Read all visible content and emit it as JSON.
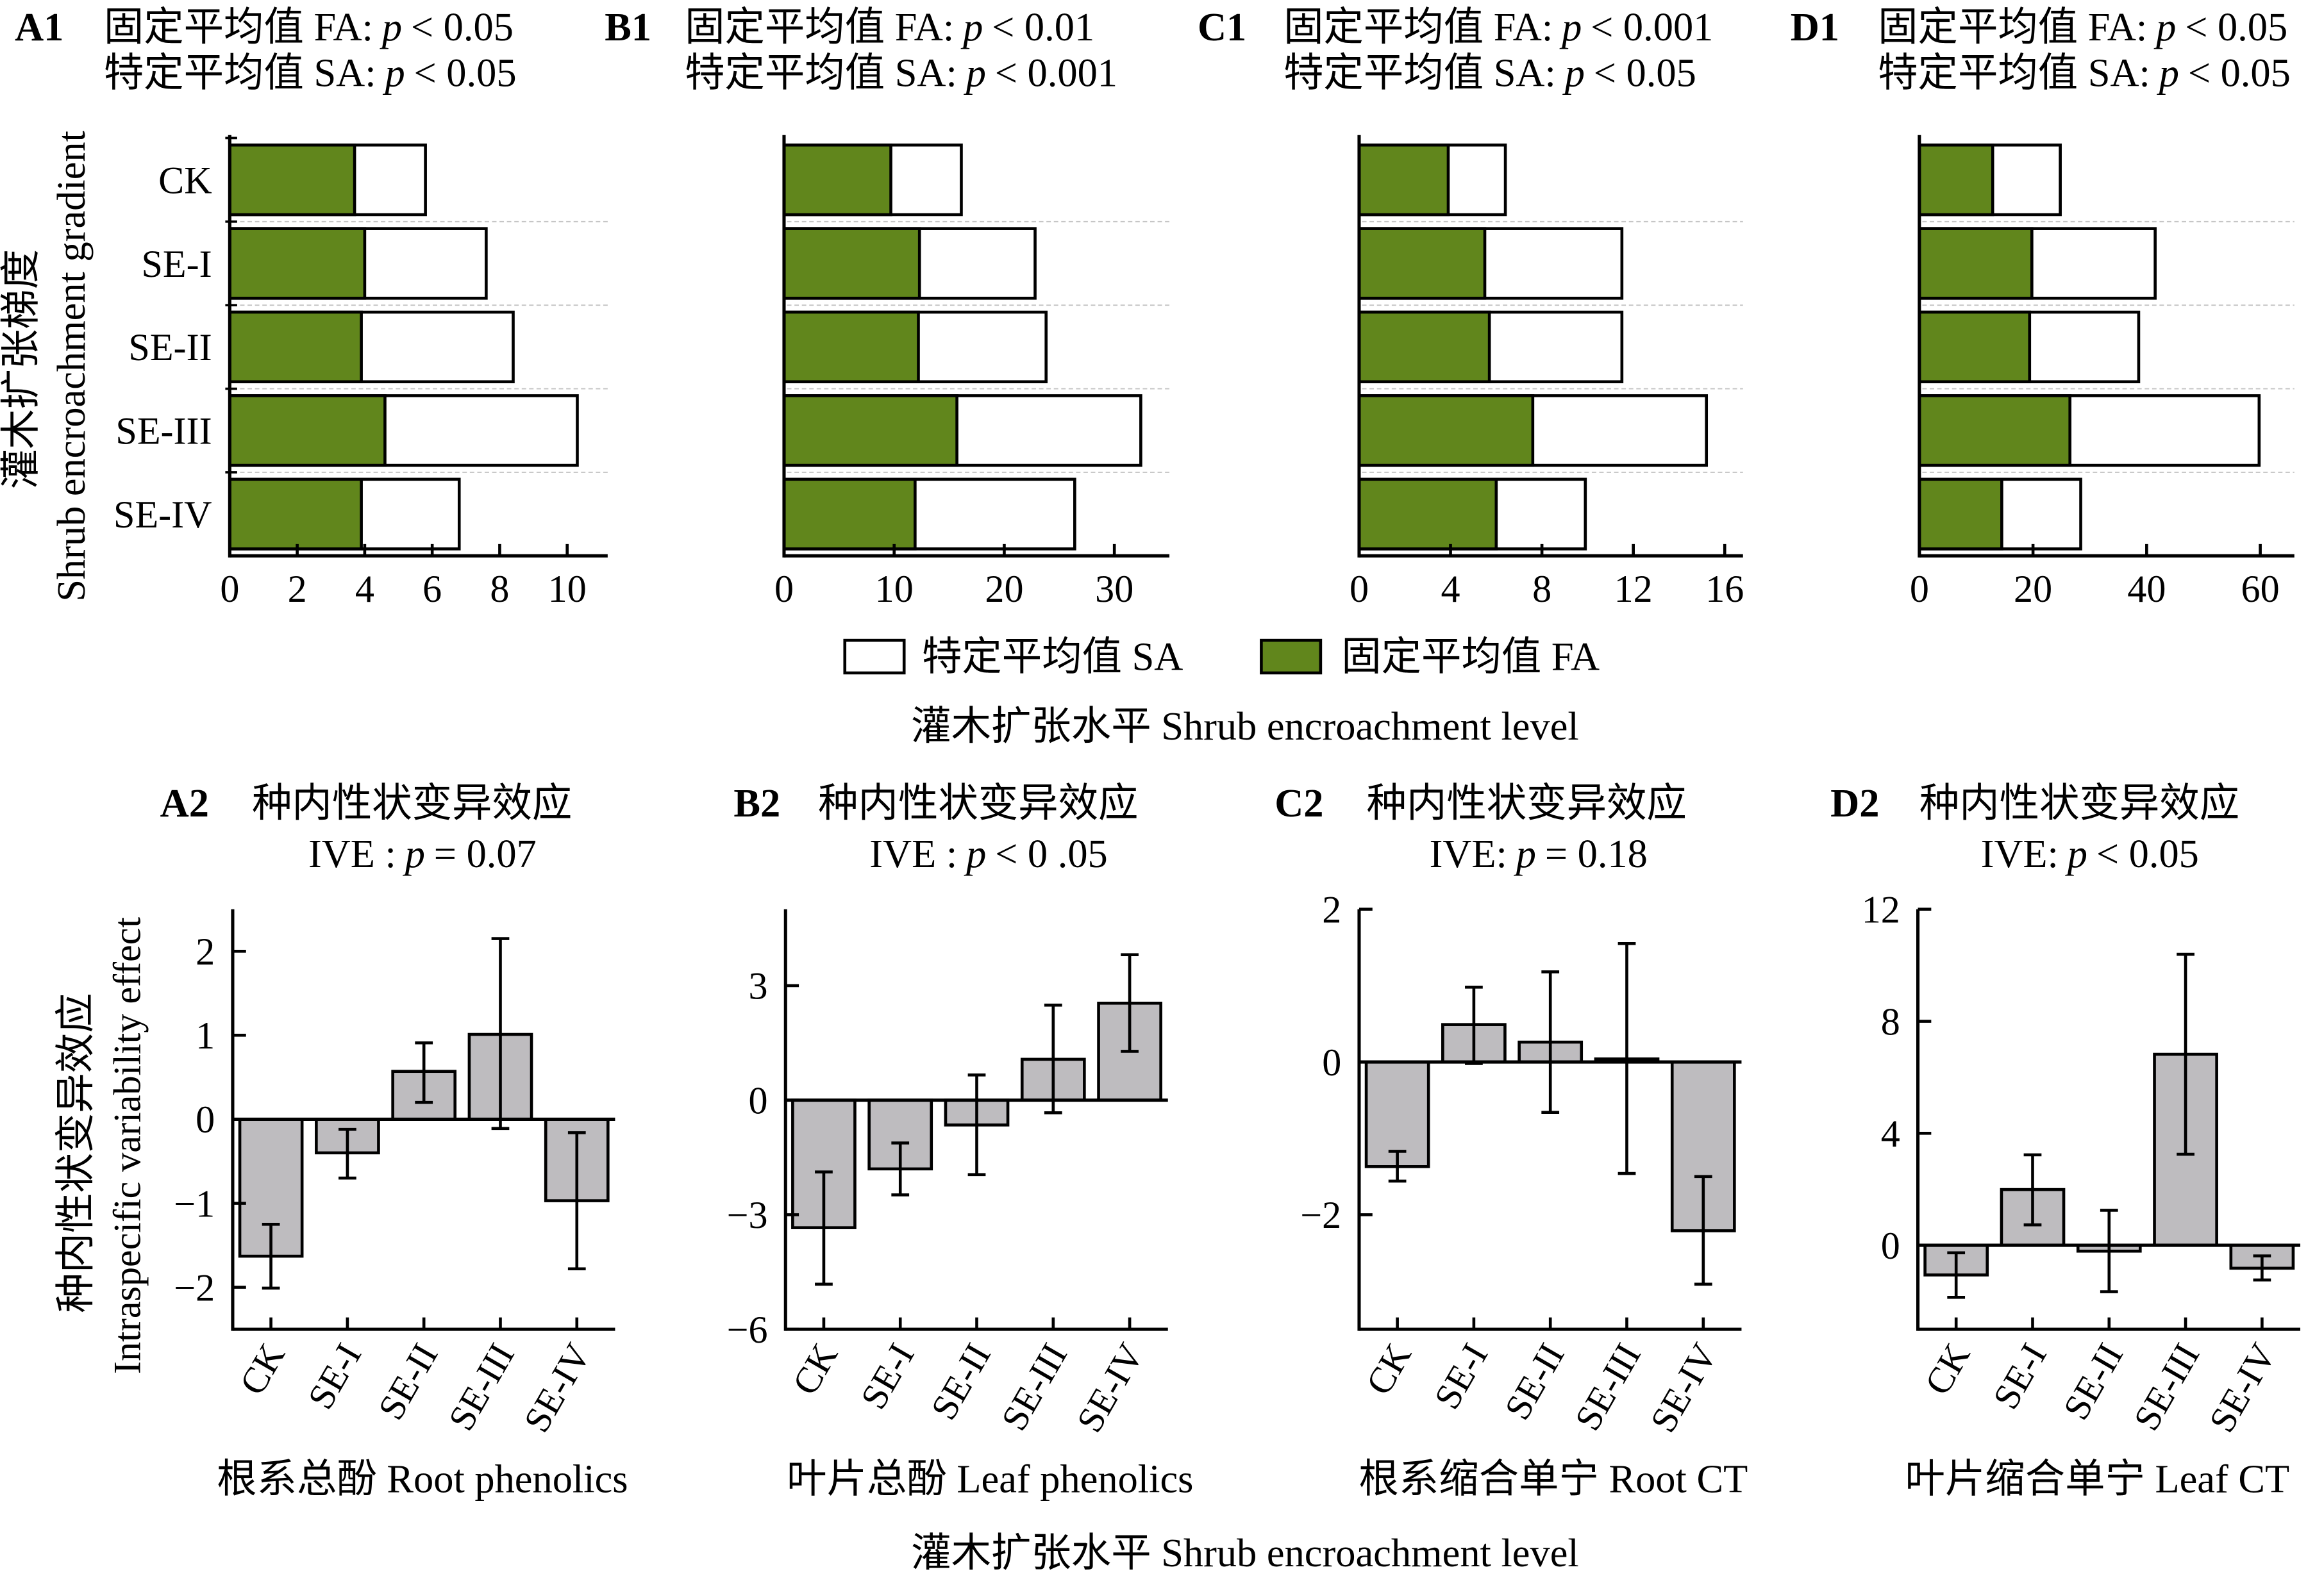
{
  "p_symbol": "p",
  "colors": {
    "fa": "#61861c",
    "sa": "#ffffff",
    "ive_bar": "#bebcbf",
    "separator": "#c4c4c4"
  },
  "figure": {
    "top_row": {
      "ylabel_cn": "灌木扩张梯度",
      "ylabel_en": "Shrub encroachment gradient",
      "legend": [
        {
          "label": "特定平均值 SA",
          "color": "#ffffff"
        },
        {
          "label": "固定平均值 FA",
          "color": "#61861c"
        }
      ],
      "legend_position": "below panels, centered",
      "xlabel": "灌木扩张水平 Shrub encroachment level"
    },
    "bottom_row": {
      "ylabel_cn": "种内性状变异效应",
      "ylabel_en": "Intraspecific variability effect",
      "xlabel": "灌木扩张水平 Shrub encroachment level"
    }
  },
  "chart_data": [
    {
      "panel_label": "A1",
      "type": "bar",
      "orientation": "horizontal",
      "overlay": true,
      "tests": [
        {
          "label": "固定平均值 FA:",
          "value": "< 0.05"
        },
        {
          "label": "特定平均值 SA:",
          "value": "< 0.05"
        }
      ],
      "categories": [
        "CK",
        "SE-I",
        "SE-II",
        "SE-III",
        "SE-IV"
      ],
      "series": [
        {
          "key": "sa",
          "name": "特定平均值 SA",
          "color": "#ffffff",
          "values": [
            5.8,
            7.6,
            8.4,
            10.3,
            6.8
          ]
        },
        {
          "key": "fa",
          "name": "固定平均值 FA",
          "color": "#61861c",
          "values": [
            3.7,
            4.0,
            3.9,
            4.6,
            3.9
          ]
        }
      ],
      "xticks": [
        "0",
        "2",
        "4",
        "6",
        "8",
        "10"
      ],
      "xlim": [
        0,
        11.2
      ],
      "ylabel": "灌木扩张梯度 Shrub encroachment gradient",
      "xlabel": "灌木扩张水平 Shrub encroachment level",
      "grid": "dashed category separators"
    },
    {
      "panel_label": "B1",
      "type": "bar",
      "orientation": "horizontal",
      "overlay": true,
      "tests": [
        {
          "label": "固定平均值 FA:",
          "value": "< 0.01"
        },
        {
          "label": "特定平均值 SA:",
          "value": "< 0.001"
        }
      ],
      "categories": [
        "CK",
        "SE-I",
        "SE-II",
        "SE-III",
        "SE-IV"
      ],
      "series": [
        {
          "key": "sa",
          "name": "特定平均值 SA",
          "color": "#ffffff",
          "values": [
            16.1,
            22.8,
            23.8,
            32.4,
            26.4
          ]
        },
        {
          "key": "fa",
          "name": "固定平均值 FA",
          "color": "#61861c",
          "values": [
            9.7,
            12.3,
            12.2,
            15.7,
            11.9
          ]
        }
      ],
      "xticks": [
        "0",
        "10",
        "20",
        "30"
      ],
      "xlim": [
        0,
        35
      ],
      "xlabel": "灌木扩张水平 Shrub encroachment level",
      "grid": "dashed category separators"
    },
    {
      "panel_label": "C1",
      "type": "bar",
      "orientation": "horizontal",
      "overlay": true,
      "tests": [
        {
          "label": "固定平均值 FA:",
          "value": "< 0.001"
        },
        {
          "label": "特定平均值 SA:",
          "value": "< 0.05"
        }
      ],
      "categories": [
        "CK",
        "SE-I",
        "SE-II",
        "SE-III",
        "SE-IV"
      ],
      "series": [
        {
          "key": "sa",
          "name": "特定平均值 SA",
          "color": "#ffffff",
          "values": [
            6.4,
            11.5,
            11.5,
            15.2,
            9.9
          ]
        },
        {
          "key": "fa",
          "name": "固定平均值 FA",
          "color": "#61861c",
          "values": [
            3.9,
            5.5,
            5.7,
            7.6,
            6.0
          ]
        }
      ],
      "xticks": [
        "0",
        "4",
        "8",
        "12",
        "16"
      ],
      "xlim": [
        0,
        16.8
      ],
      "xlabel": "灌木扩张水平 Shrub encroachment level",
      "grid": "dashed category separators"
    },
    {
      "panel_label": "D1",
      "type": "bar",
      "orientation": "horizontal",
      "overlay": true,
      "tests": [
        {
          "label": "固定平均值 FA:",
          "value": "< 0.05"
        },
        {
          "label": "特定平均值 SA:",
          "value": "< 0.05"
        }
      ],
      "categories": [
        "CK",
        "SE-I",
        "SE-II",
        "SE-III",
        "SE-IV"
      ],
      "series": [
        {
          "key": "sa",
          "name": "特定平均值 SA",
          "color": "#ffffff",
          "values": [
            24.8,
            41.5,
            38.6,
            59.8,
            28.4
          ]
        },
        {
          "key": "fa",
          "name": "固定平均值 FA",
          "color": "#61861c",
          "values": [
            12.9,
            19.8,
            19.4,
            26.5,
            14.5
          ]
        }
      ],
      "xticks": [
        "0",
        "20",
        "40",
        "60"
      ],
      "xlim": [
        0,
        66
      ],
      "xlabel": "灌木扩张水平 Shrub encroachment level",
      "grid": "dashed category separators"
    },
    {
      "panel_label": "A2",
      "type": "bar",
      "orientation": "vertical",
      "title": "种内性状变异效应",
      "stat": {
        "label": "IVE :",
        "value": "= 0.07"
      },
      "categories": [
        "CK",
        "SE-I",
        "SE-II",
        "SE-III",
        "SE-IV"
      ],
      "values": [
        -1.63,
        -0.4,
        0.57,
        1.01,
        -0.97
      ],
      "error_low": [
        -2.01,
        -0.7,
        0.2,
        -0.11,
        -1.78
      ],
      "error_high": [
        -1.25,
        -0.12,
        0.91,
        2.15,
        -0.16
      ],
      "yticks": [
        "−2",
        "−1",
        "0",
        "1",
        "2"
      ],
      "ylim": [
        -2.5,
        2.5
      ],
      "ylabel": "种内性状变异效应 Intraspecific variability effect",
      "xlabel": "根系总酚 Root phenolics"
    },
    {
      "panel_label": "B2",
      "type": "bar",
      "orientation": "vertical",
      "title": "种内性状变异效应",
      "stat": {
        "label": "IVE :",
        "value": "< 0 .05"
      },
      "categories": [
        "CK",
        "SE-I",
        "SE-II",
        "SE-III",
        "SE-IV"
      ],
      "values": [
        -3.34,
        -1.8,
        -0.65,
        1.07,
        2.54
      ],
      "error_low": [
        -4.82,
        -2.48,
        -1.95,
        -0.33,
        1.28
      ],
      "error_high": [
        -1.88,
        -1.12,
        0.66,
        2.49,
        3.81
      ],
      "yticks": [
        "−6",
        "−3",
        "0",
        "3"
      ],
      "ylim": [
        -6,
        5
      ],
      "xlabel": "叶片总酚 Leaf phenolics"
    },
    {
      "panel_label": "C2",
      "type": "bar",
      "orientation": "vertical",
      "title": "种内性状变异效应",
      "stat": {
        "label": "IVE:",
        "value": "= 0.18"
      },
      "categories": [
        "CK",
        "SE-I",
        "SE-II",
        "SE-III",
        "SE-IV"
      ],
      "values": [
        -1.37,
        0.49,
        0.26,
        0.04,
        -2.21
      ],
      "error_low": [
        -1.56,
        -0.02,
        -0.66,
        -1.46,
        -2.91
      ],
      "error_high": [
        -1.17,
        0.98,
        1.18,
        1.55,
        -1.5
      ],
      "yticks": [
        "−2",
        "0",
        "2"
      ],
      "ylim": [
        -3.5,
        2
      ],
      "xlabel": "根系缩合单宁 Root CT"
    },
    {
      "panel_label": "D2",
      "type": "bar",
      "orientation": "vertical",
      "title": "种内性状变异效应",
      "stat": {
        "label": "IVE:",
        "value": "< 0.05"
      },
      "categories": [
        "CK",
        "SE-I",
        "SE-II",
        "SE-III",
        "SE-IV"
      ],
      "values": [
        -1.06,
        1.99,
        -0.21,
        6.82,
        -0.82
      ],
      "error_low": [
        -1.86,
        0.73,
        -1.66,
        3.25,
        -1.24
      ],
      "error_high": [
        -0.27,
        3.23,
        1.25,
        10.39,
        -0.38
      ],
      "yticks": [
        "0",
        "4",
        "8",
        "12"
      ],
      "ylim": [
        -3,
        12
      ],
      "xlabel": "叶片缩合单宁 Leaf CT"
    }
  ]
}
